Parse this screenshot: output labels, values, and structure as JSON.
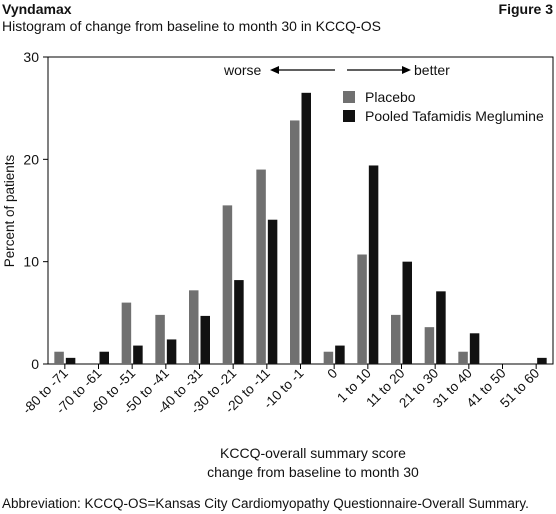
{
  "header": {
    "product": "Vyndamax",
    "figure_label": "Figure 3",
    "subtitle": "Histogram of change from baseline to month 30 in KCCQ-OS"
  },
  "footnote": "Abbreviation: KCCQ-OS=Kansas City Cardiomyopathy Questionnaire-Overall Summary.",
  "colors": {
    "placebo": "#707070",
    "tafamidis": "#111111",
    "axis": "#000000"
  },
  "annotations": {
    "worse": "worse",
    "better": "better"
  },
  "chart_data": {
    "type": "bar",
    "title": "Histogram of change from baseline to month 30 in KCCQ-OS",
    "xlabel_line1": "KCCQ-overall summary score",
    "xlabel_line2": "change from baseline to month 30",
    "ylabel": "Percent of patients",
    "ylim": [
      0,
      30
    ],
    "yticks": [
      0,
      10,
      20,
      30
    ],
    "legend_position": "top-right",
    "categories": [
      "-80 to -71",
      "-70 to -61",
      "-60 to -51",
      "-50 to -41",
      "-40 to -31",
      "-30 to -21",
      "-20 to -11",
      "-10 to -1",
      "0",
      "1 to 10",
      "11 to 20",
      "21 to 30",
      "31 to 40",
      "41 to 50",
      "51 to 60"
    ],
    "series": [
      {
        "name": "Placebo",
        "color": "#707070",
        "values": [
          1.2,
          0.0,
          6.0,
          4.8,
          7.2,
          15.5,
          19.0,
          23.8,
          1.2,
          10.7,
          4.8,
          3.6,
          1.2,
          0.0,
          0.0
        ]
      },
      {
        "name": "Pooled Tafamidis Meglumine",
        "color": "#111111",
        "values": [
          0.6,
          1.2,
          1.8,
          2.4,
          4.7,
          8.2,
          14.1,
          26.5,
          1.8,
          19.4,
          10.0,
          7.1,
          3.0,
          0.0,
          0.6
        ]
      }
    ]
  }
}
